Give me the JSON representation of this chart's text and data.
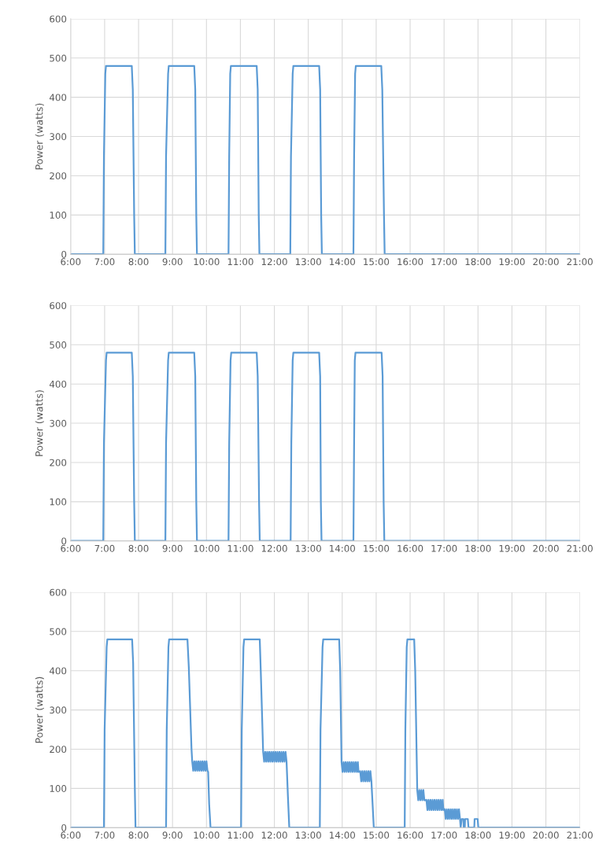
{
  "chart_data": [
    {
      "type": "line",
      "ylabel": "Power (watts)",
      "ylim": [
        0,
        600
      ],
      "yticks": [
        0,
        100,
        200,
        300,
        400,
        500,
        600
      ],
      "xlim": [
        6,
        21
      ],
      "xticks": [
        {
          "value": 6,
          "label": "6:00"
        },
        {
          "value": 7,
          "label": "7:00"
        },
        {
          "value": 8,
          "label": "8:00"
        },
        {
          "value": 9,
          "label": "9:00"
        },
        {
          "value": 10,
          "label": "10:00"
        },
        {
          "value": 11,
          "label": "11:00"
        },
        {
          "value": 12,
          "label": "12:00"
        },
        {
          "value": 13,
          "label": "13:00"
        },
        {
          "value": 14,
          "label": "14:00"
        },
        {
          "value": 15,
          "label": "15:00"
        },
        {
          "value": 16,
          "label": "16:00"
        },
        {
          "value": 17,
          "label": "17:00"
        },
        {
          "value": 18,
          "label": "18:00"
        },
        {
          "value": 19,
          "label": "19:00"
        },
        {
          "value": 20,
          "label": "20:00"
        },
        {
          "value": 21,
          "label": "21:00"
        }
      ],
      "grid": true,
      "line_style": "solid",
      "series": [
        {
          "color": "#5b9bd5",
          "x": [
            6,
            6.96,
            6.98,
            7.02,
            7.04,
            7.8,
            7.83,
            7.87,
            7.89,
            8.79,
            8.81,
            8.87,
            8.89,
            9.64,
            9.67,
            9.7,
            9.72,
            10.65,
            10.67,
            10.7,
            10.72,
            11.48,
            11.51,
            11.54,
            11.56,
            12.47,
            12.49,
            12.54,
            12.56,
            13.32,
            13.35,
            13.38,
            13.4,
            14.33,
            14.35,
            14.38,
            14.4,
            15.15,
            15.18,
            15.23,
            15.25,
            21
          ],
          "values": [
            0,
            0,
            250,
            460,
            480,
            480,
            420,
            100,
            0,
            0,
            250,
            460,
            480,
            480,
            420,
            100,
            0,
            0,
            250,
            460,
            480,
            480,
            420,
            100,
            0,
            0,
            250,
            460,
            480,
            480,
            420,
            100,
            0,
            0,
            250,
            460,
            480,
            480,
            420,
            100,
            0,
            0
          ]
        }
      ]
    },
    {
      "type": "line",
      "ylabel": "Power (watts)",
      "ylim": [
        0,
        600
      ],
      "yticks": [
        0,
        100,
        200,
        300,
        400,
        500,
        600
      ],
      "xlim": [
        6,
        21
      ],
      "xticks": [
        {
          "value": 6,
          "label": "6:00"
        },
        {
          "value": 7,
          "label": "7:00"
        },
        {
          "value": 8,
          "label": "8:00"
        },
        {
          "value": 9,
          "label": "9:00"
        },
        {
          "value": 10,
          "label": "10:00"
        },
        {
          "value": 11,
          "label": "11:00"
        },
        {
          "value": 12,
          "label": "12:00"
        },
        {
          "value": 13,
          "label": "13:00"
        },
        {
          "value": 14,
          "label": "14:00"
        },
        {
          "value": 15,
          "label": "15:00"
        },
        {
          "value": 16,
          "label": "16:00"
        },
        {
          "value": 17,
          "label": "17:00"
        },
        {
          "value": 18,
          "label": "18:00"
        },
        {
          "value": 19,
          "label": "19:00"
        },
        {
          "value": 20,
          "label": "20:00"
        },
        {
          "value": 21,
          "label": "21:00"
        }
      ],
      "grid": true,
      "line_style": "solid",
      "series": [
        {
          "color": "#5b9bd5",
          "x": [
            6,
            6.96,
            6.98,
            7.04,
            7.06,
            7.8,
            7.83,
            7.87,
            7.89,
            8.79,
            8.81,
            8.87,
            8.89,
            9.64,
            9.67,
            9.7,
            9.72,
            10.65,
            10.67,
            10.71,
            10.73,
            11.48,
            11.51,
            11.55,
            11.57,
            12.48,
            12.5,
            12.54,
            12.56,
            13.32,
            13.35,
            13.37,
            13.39,
            14.33,
            14.35,
            14.37,
            14.39,
            15.16,
            15.19,
            15.22,
            15.24,
            21
          ],
          "values": [
            0,
            0,
            250,
            460,
            480,
            480,
            420,
            100,
            0,
            0,
            250,
            460,
            480,
            480,
            420,
            100,
            0,
            0,
            250,
            460,
            480,
            480,
            420,
            100,
            0,
            0,
            250,
            460,
            480,
            480,
            420,
            100,
            0,
            0,
            250,
            460,
            480,
            480,
            420,
            100,
            0,
            0
          ]
        }
      ]
    },
    {
      "type": "line",
      "ylabel": "Power (watts)",
      "ylim": [
        0,
        600
      ],
      "yticks": [
        0,
        100,
        200,
        300,
        400,
        500,
        600
      ],
      "xlim": [
        6,
        21
      ],
      "xticks": [
        {
          "value": 6,
          "label": "6:00"
        },
        {
          "value": 7,
          "label": "7:00"
        },
        {
          "value": 8,
          "label": "8:00"
        },
        {
          "value": 9,
          "label": "9:00"
        },
        {
          "value": 10,
          "label": "10:00"
        },
        {
          "value": 11,
          "label": "11:00"
        },
        {
          "value": 12,
          "label": "12:00"
        },
        {
          "value": 13,
          "label": "13:00"
        },
        {
          "value": 14,
          "label": "14:00"
        },
        {
          "value": 15,
          "label": "15:00"
        },
        {
          "value": 16,
          "label": "16:00"
        },
        {
          "value": 17,
          "label": "17:00"
        },
        {
          "value": 18,
          "label": "18:00"
        },
        {
          "value": 19,
          "label": "19:00"
        },
        {
          "value": 20,
          "label": "20:00"
        },
        {
          "value": 21,
          "label": "21:00"
        }
      ],
      "grid": true,
      "line_style": "solid",
      "series": [
        {
          "color": "#5b9bd5",
          "x": [
            6,
            6.98,
            7.0,
            7.06,
            7.08,
            7.81,
            7.84,
            7.89,
            7.91,
            8.81,
            8.83,
            8.88,
            8.9,
            9.44,
            9.48,
            9.56,
            9.58,
            9.61,
            9.64,
            9.67,
            9.7,
            9.73,
            9.76,
            9.79,
            9.82,
            9.85,
            9.88,
            9.91,
            9.94,
            9.97,
            10.0,
            10.03,
            10.05,
            10.08,
            10.12,
            11.02,
            11.04,
            11.09,
            11.11,
            11.57,
            11.6,
            11.67,
            11.7,
            11.73,
            11.76,
            11.79,
            11.82,
            11.85,
            11.88,
            11.91,
            11.94,
            11.97,
            12.0,
            12.03,
            12.06,
            12.09,
            12.12,
            12.15,
            12.18,
            12.21,
            12.24,
            12.27,
            12.3,
            12.33,
            12.36,
            12.4,
            12.44,
            13.34,
            13.36,
            13.42,
            13.44,
            13.91,
            13.94,
            13.98,
            14.01,
            14.04,
            14.07,
            14.1,
            14.13,
            14.16,
            14.19,
            14.22,
            14.25,
            14.28,
            14.31,
            14.34,
            14.37,
            14.4,
            14.43,
            14.46,
            14.48,
            14.53,
            14.56,
            14.59,
            14.62,
            14.65,
            14.68,
            14.71,
            14.74,
            14.77,
            14.8,
            14.83,
            14.86,
            14.93,
            15.84,
            15.86,
            15.9,
            15.92,
            16.12,
            16.15,
            16.21,
            16.24,
            16.27,
            16.3,
            16.33,
            16.36,
            16.39,
            16.42,
            16.45,
            16.48,
            16.51,
            16.54,
            16.57,
            16.6,
            16.63,
            16.66,
            16.69,
            16.72,
            16.75,
            16.78,
            16.81,
            16.84,
            16.87,
            16.9,
            16.93,
            16.96,
            16.98,
            17.02,
            17.05,
            17.08,
            17.11,
            17.14,
            17.17,
            17.2,
            17.23,
            17.26,
            17.29,
            17.32,
            17.35,
            17.38,
            17.41,
            17.44,
            17.47,
            17.49,
            17.52,
            17.57,
            17.58,
            17.61,
            17.62,
            17.7,
            17.72,
            17.89,
            17.9,
            17.99,
            18.01,
            21
          ],
          "values": [
            0,
            0,
            250,
            460,
            480,
            480,
            420,
            100,
            0,
            0,
            250,
            460,
            480,
            480,
            409,
            200,
            169,
            145,
            169,
            145,
            169,
            145,
            169,
            145,
            169,
            145,
            169,
            145,
            169,
            145,
            169,
            145,
            142,
            60,
            0,
            0,
            250,
            460,
            480,
            480,
            400,
            193,
            168,
            193,
            168,
            193,
            168,
            193,
            168,
            193,
            168,
            193,
            168,
            193,
            168,
            193,
            168,
            193,
            168,
            193,
            168,
            193,
            168,
            193,
            168,
            80,
            0,
            0,
            250,
            460,
            480,
            480,
            400,
            167,
            142,
            167,
            142,
            167,
            142,
            167,
            142,
            167,
            142,
            167,
            142,
            167,
            142,
            167,
            142,
            167,
            142,
            144,
            118,
            144,
            118,
            144,
            118,
            144,
            118,
            144,
            118,
            144,
            118,
            0,
            0,
            250,
            460,
            480,
            480,
            400,
            96,
            70,
            96,
            70,
            96,
            70,
            96,
            70,
            70,
            71,
            45,
            71,
            45,
            71,
            45,
            71,
            45,
            71,
            45,
            71,
            45,
            71,
            45,
            71,
            45,
            71,
            45,
            47,
            22,
            47,
            22,
            47,
            22,
            47,
            22,
            47,
            22,
            47,
            22,
            47,
            22,
            47,
            22,
            0,
            22,
            22,
            0,
            0,
            22,
            22,
            0,
            0,
            22,
            22,
            0,
            0
          ]
        }
      ]
    }
  ]
}
